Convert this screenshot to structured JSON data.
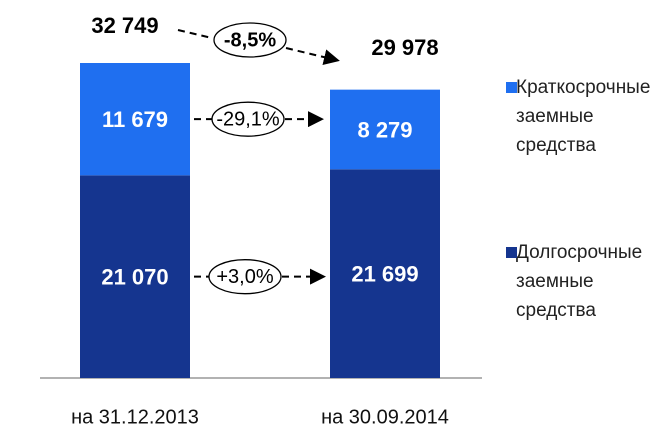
{
  "chart_data": {
    "type": "stacked_bar",
    "categories": [
      "на 31.12.2013",
      "на 30.09.2014"
    ],
    "series": [
      {
        "name": "Долгосрочные заемные средства",
        "color": "#15358f",
        "values": [
          21070,
          21699
        ],
        "value_labels": [
          "21 070",
          "21 699"
        ]
      },
      {
        "name": "Краткосрочные заемные средства",
        "color": "#1f6ff0",
        "values": [
          11679,
          8279
        ],
        "value_labels": [
          "11 679",
          "8 279"
        ]
      }
    ],
    "totals": [
      32749,
      29978
    ],
    "total_labels": [
      "32 749",
      "29 978"
    ],
    "annotations": [
      "-8,5%",
      "-29,1%",
      "+3,0%"
    ]
  }
}
